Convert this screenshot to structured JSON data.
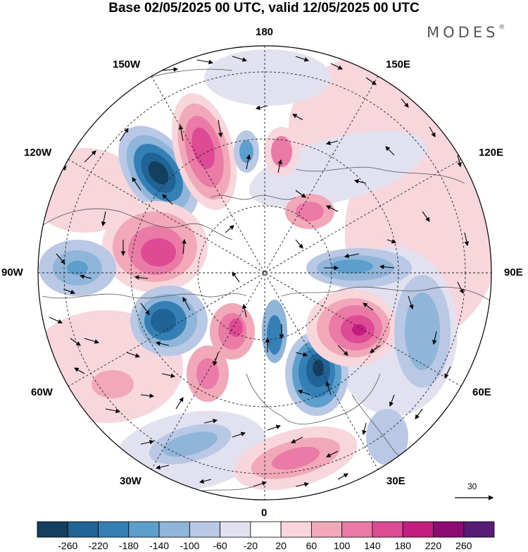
{
  "header": {
    "title": "Base 02/05/2025 00 UTC, valid 12/05/2025 00 UTC",
    "brand": "MODES",
    "brand_mark": "®"
  },
  "map": {
    "projection": "north polar stereographic",
    "longitude_labels": {
      "top": "180",
      "top_left": "150W",
      "top_right": "150E",
      "upper_left": "120W",
      "upper_right": "120E",
      "left": "90W",
      "right": "90E",
      "lower_left": "60W",
      "lower_right": "60E",
      "bottom_left": "30W",
      "bottom_right": "30E",
      "bottom": "0"
    },
    "reference_vector": "30"
  },
  "colorbar": {
    "colors": [
      "#14405f",
      "#1f6494",
      "#337fb6",
      "#5c9fcd",
      "#8fb6d9",
      "#b9c8e4",
      "#e2e1f0",
      "#ffffff",
      "#f7d6dc",
      "#f1a8b8",
      "#ea7aa6",
      "#df4a95",
      "#c41d80",
      "#8b0a73",
      "#581c75"
    ],
    "labels": [
      "-260",
      "-220",
      "-180",
      "-140",
      "-100",
      "-60",
      "-20",
      "20",
      "60",
      "100",
      "140",
      "180",
      "220",
      "260"
    ]
  }
}
